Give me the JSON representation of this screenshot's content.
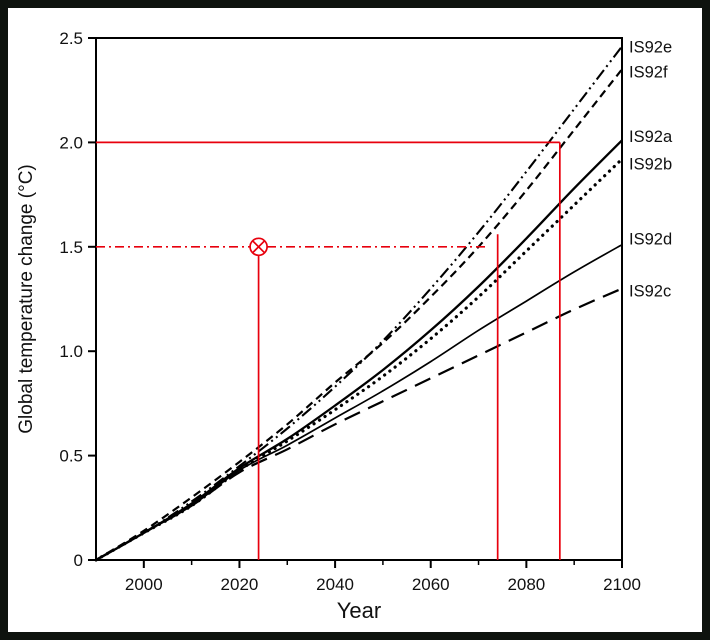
{
  "figure": {
    "background": "#ffffff",
    "border_color": "#0e130e",
    "axis_color": "#000000",
    "annotation_color": "#e8000d"
  },
  "chart_data": {
    "type": "line",
    "title": "",
    "xlabel": "Year",
    "ylabel": "Global temperature change (°C)",
    "xlim": [
      1990,
      2100
    ],
    "ylim": [
      0,
      2.5
    ],
    "grid": false,
    "legend_position": "right-edge-labels",
    "x_major_ticks": [
      2000,
      2020,
      2040,
      2060,
      2080,
      2100
    ],
    "x_minor_ticks": [
      2010,
      2030,
      2050,
      2070,
      2090
    ],
    "y_ticks": [
      0,
      0.5,
      1.0,
      1.5,
      2.0,
      2.5
    ],
    "y_tick_labels": [
      "0",
      "0.5",
      "1.0",
      "1.5",
      "2.0",
      "2.5"
    ],
    "x": [
      1990,
      2000,
      2010,
      2020,
      2030,
      2040,
      2050,
      2060,
      2070,
      2080,
      2090,
      2100
    ],
    "series": [
      {
        "name": "IS92e",
        "style": "dashdotdot",
        "width": 2.1,
        "color": "#000000",
        "label_y": 2.46,
        "values": [
          0,
          0.13,
          0.28,
          0.45,
          0.63,
          0.83,
          1.05,
          1.3,
          1.57,
          1.86,
          2.16,
          2.46
        ]
      },
      {
        "name": "IS92f",
        "style": "dash",
        "width": 2.2,
        "color": "#000000",
        "label_y": 2.34,
        "values": [
          0,
          0.14,
          0.3,
          0.47,
          0.65,
          0.85,
          1.04,
          1.26,
          1.5,
          1.77,
          2.06,
          2.35
        ]
      },
      {
        "name": "IS92a",
        "style": "solid",
        "width": 2.3,
        "color": "#000000",
        "label_y": 2.03,
        "values": [
          0,
          0.13,
          0.27,
          0.44,
          0.58,
          0.74,
          0.91,
          1.1,
          1.31,
          1.54,
          1.78,
          2.01
        ]
      },
      {
        "name": "IS92b",
        "style": "dotted",
        "width": 3.2,
        "color": "#000000",
        "label_y": 1.9,
        "values": [
          0,
          0.13,
          0.26,
          0.43,
          0.57,
          0.72,
          0.88,
          1.06,
          1.26,
          1.48,
          1.7,
          1.92
        ]
      },
      {
        "name": "IS92d",
        "style": "solid",
        "width": 1.7,
        "color": "#000000",
        "label_y": 1.54,
        "values": [
          0,
          0.13,
          0.26,
          0.43,
          0.55,
          0.68,
          0.81,
          0.95,
          1.1,
          1.24,
          1.38,
          1.51
        ]
      },
      {
        "name": "IS92c",
        "style": "longdash",
        "width": 2.2,
        "color": "#000000",
        "label_y": 1.29,
        "values": [
          0,
          0.13,
          0.26,
          0.42,
          0.53,
          0.65,
          0.76,
          0.87,
          0.98,
          1.09,
          1.2,
          1.3
        ]
      }
    ],
    "annotations": {
      "color": "#e8000d",
      "lines": [
        {
          "id": "threshold-2.0-horizontal",
          "type": "h",
          "y": 2.0,
          "x0": 1990,
          "x1": 2087,
          "dash": "solid"
        },
        {
          "id": "threshold-2.0-vertical",
          "type": "v",
          "x": 2087,
          "y0": 0,
          "y1": 2.0,
          "dash": "solid"
        },
        {
          "id": "threshold-1.5-horizontal",
          "type": "h",
          "y": 1.5,
          "x0": 1990,
          "x1": 2072,
          "dash": "dashdot"
        },
        {
          "id": "threshold-1.5-vertical",
          "type": "v",
          "x": 2074,
          "y0": 0,
          "y1": 1.56,
          "dash": "solid"
        },
        {
          "id": "marker-vertical",
          "type": "v",
          "x": 2024,
          "y0": 0,
          "y1": 1.5,
          "dash": "solid"
        }
      ],
      "marker": {
        "x": 2024,
        "y": 1.5,
        "type": "circle-x"
      }
    }
  }
}
